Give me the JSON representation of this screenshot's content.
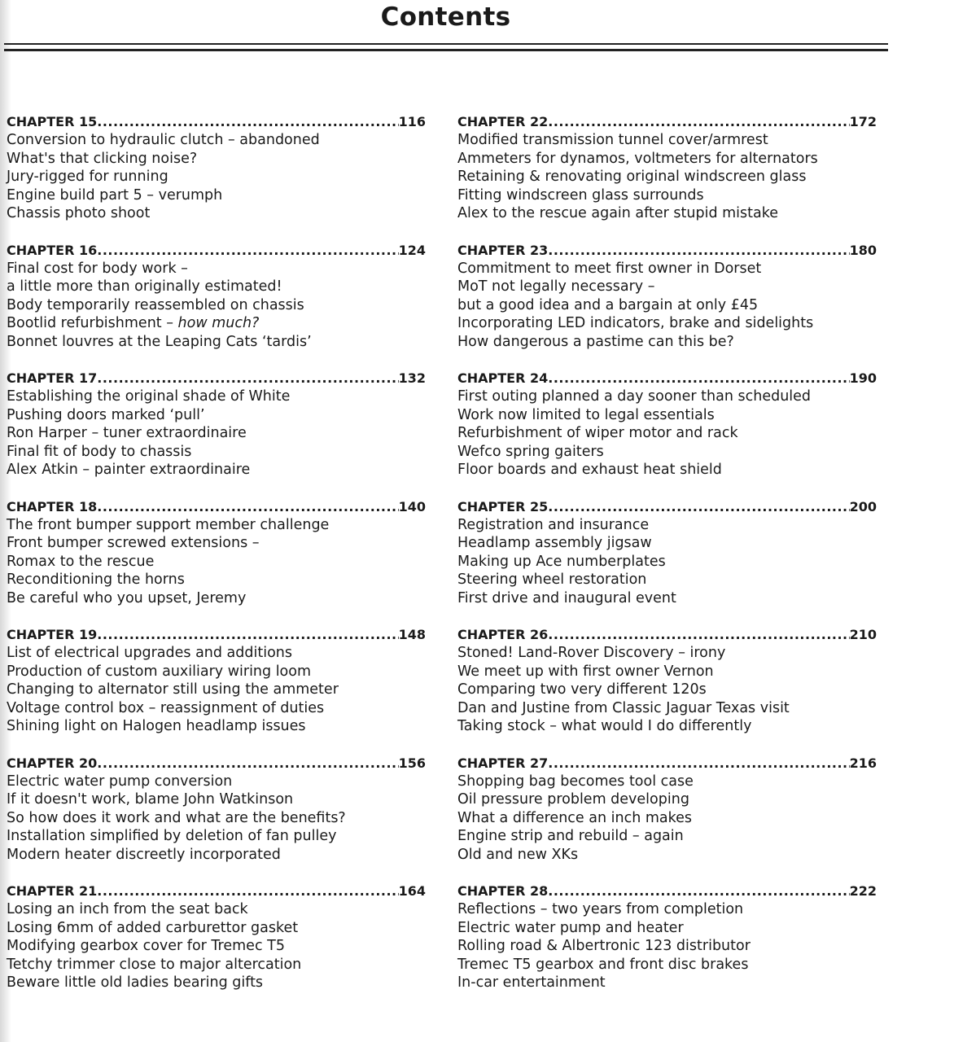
{
  "title": "Contents",
  "columns": [
    [
      {
        "chapter": "CHAPTER 15",
        "page": "116",
        "items": [
          {
            "text": "Conversion to hydraulic clutch – abandoned"
          },
          {
            "text": "What's that clicking noise?"
          },
          {
            "text": "Jury-rigged for running"
          },
          {
            "text": "Engine build part 5 – verumph"
          },
          {
            "text": "Chassis photo shoot"
          }
        ]
      },
      {
        "chapter": "CHAPTER 16",
        "page": "124",
        "items": [
          {
            "text": "Final cost for body work –"
          },
          {
            "text": "a little more than originally estimated!"
          },
          {
            "text": "Body temporarily reassembled on chassis"
          },
          {
            "text": "Bootlid refurbishment – ",
            "em": "how much?"
          },
          {
            "text": "Bonnet louvres at the Leaping Cats ‘tardis’"
          }
        ]
      },
      {
        "chapter": "CHAPTER 17",
        "page": "132",
        "items": [
          {
            "text": "Establishing the original shade of White"
          },
          {
            "text": "Pushing doors marked ‘pull’"
          },
          {
            "text": "Ron Harper – tuner extraordinaire"
          },
          {
            "text": "Final fit of body to chassis"
          },
          {
            "text": "Alex Atkin – painter extraordinaire"
          }
        ]
      },
      {
        "chapter": "CHAPTER 18",
        "page": "140",
        "items": [
          {
            "text": "The front bumper support member challenge"
          },
          {
            "text": "Front bumper screwed extensions –"
          },
          {
            "text": "Romax to the rescue"
          },
          {
            "text": "Reconditioning the horns"
          },
          {
            "text": "Be careful who you upset, Jeremy"
          }
        ]
      },
      {
        "chapter": "CHAPTER 19",
        "page": "148",
        "items": [
          {
            "text": "List of electrical upgrades and additions"
          },
          {
            "text": "Production of custom auxiliary wiring loom"
          },
          {
            "text": "Changing to alternator still using the ammeter"
          },
          {
            "text": "Voltage control box – reassignment of duties"
          },
          {
            "text": "Shining light on Halogen headlamp issues"
          }
        ]
      },
      {
        "chapter": "CHAPTER 20",
        "page": "156",
        "items": [
          {
            "text": "Electric water pump conversion"
          },
          {
            "text": "If it doesn't work, blame John Watkinson"
          },
          {
            "text": "So how does it work and what are the benefits?"
          },
          {
            "text": "Installation simplified by deletion of fan pulley"
          },
          {
            "text": "Modern heater discreetly incorporated"
          }
        ]
      },
      {
        "chapter": "CHAPTER 21",
        "page": "164",
        "items": [
          {
            "text": "Losing an inch from the seat back"
          },
          {
            "text": "Losing 6mm of added carburettor gasket"
          },
          {
            "text": "Modifying gearbox cover for Tremec T5"
          },
          {
            "text": "Tetchy trimmer close to major altercation"
          },
          {
            "text": "Beware little old ladies bearing gifts"
          }
        ]
      }
    ],
    [
      {
        "chapter": "CHAPTER 22",
        "page": "172",
        "items": [
          {
            "text": "Modified transmission tunnel cover/armrest"
          },
          {
            "text": "Ammeters for dynamos, voltmeters for alternators"
          },
          {
            "text": "Retaining & renovating original windscreen glass"
          },
          {
            "text": "Fitting windscreen glass surrounds"
          },
          {
            "text": "Alex to the rescue again after stupid mistake"
          }
        ]
      },
      {
        "chapter": "CHAPTER 23",
        "page": "180",
        "items": [
          {
            "text": "Commitment to meet first owner in Dorset"
          },
          {
            "text": "MoT not legally necessary –"
          },
          {
            "text": "but a good idea and a bargain at only £45"
          },
          {
            "text": "Incorporating LED indicators, brake and sidelights"
          },
          {
            "text": "How dangerous a pastime can this be?"
          }
        ]
      },
      {
        "chapter": "CHAPTER 24",
        "page": "190",
        "items": [
          {
            "text": "First outing planned a day sooner than scheduled"
          },
          {
            "text": "Work now limited to legal essentials"
          },
          {
            "text": "Refurbishment of wiper motor and rack"
          },
          {
            "text": "Wefco spring gaiters"
          },
          {
            "text": "Floor boards and exhaust heat shield"
          }
        ]
      },
      {
        "chapter": "CHAPTER 25",
        "page": "200",
        "items": [
          {
            "text": "Registration and insurance"
          },
          {
            "text": "Headlamp assembly jigsaw"
          },
          {
            "text": "Making up Ace numberplates"
          },
          {
            "text": "Steering wheel restoration"
          },
          {
            "text": "First drive and inaugural event"
          }
        ]
      },
      {
        "chapter": "CHAPTER 26",
        "page": "210",
        "items": [
          {
            "text": "Stoned! Land-Rover Discovery – irony"
          },
          {
            "text": "We meet up with first owner Vernon"
          },
          {
            "text": "Comparing two very different 120s"
          },
          {
            "text": "Dan and Justine from Classic Jaguar Texas visit"
          },
          {
            "text": "Taking stock – what would I do differently"
          }
        ]
      },
      {
        "chapter": "CHAPTER 27",
        "page": "216",
        "items": [
          {
            "text": "Shopping bag becomes tool case"
          },
          {
            "text": "Oil pressure problem developing"
          },
          {
            "text": "What a difference an inch makes"
          },
          {
            "text": "Engine strip and rebuild – again"
          },
          {
            "text": "Old and new XKs"
          }
        ]
      },
      {
        "chapter": "CHAPTER 28",
        "page": "222",
        "items": [
          {
            "text": "Reflections – two years from completion"
          },
          {
            "text": "Electric water pump and heater"
          },
          {
            "text": "Rolling road & Albertronic 123 distributor"
          },
          {
            "text": "Tremec T5 gearbox and front disc brakes"
          },
          {
            "text": "In-car entertainment"
          }
        ]
      }
    ]
  ]
}
